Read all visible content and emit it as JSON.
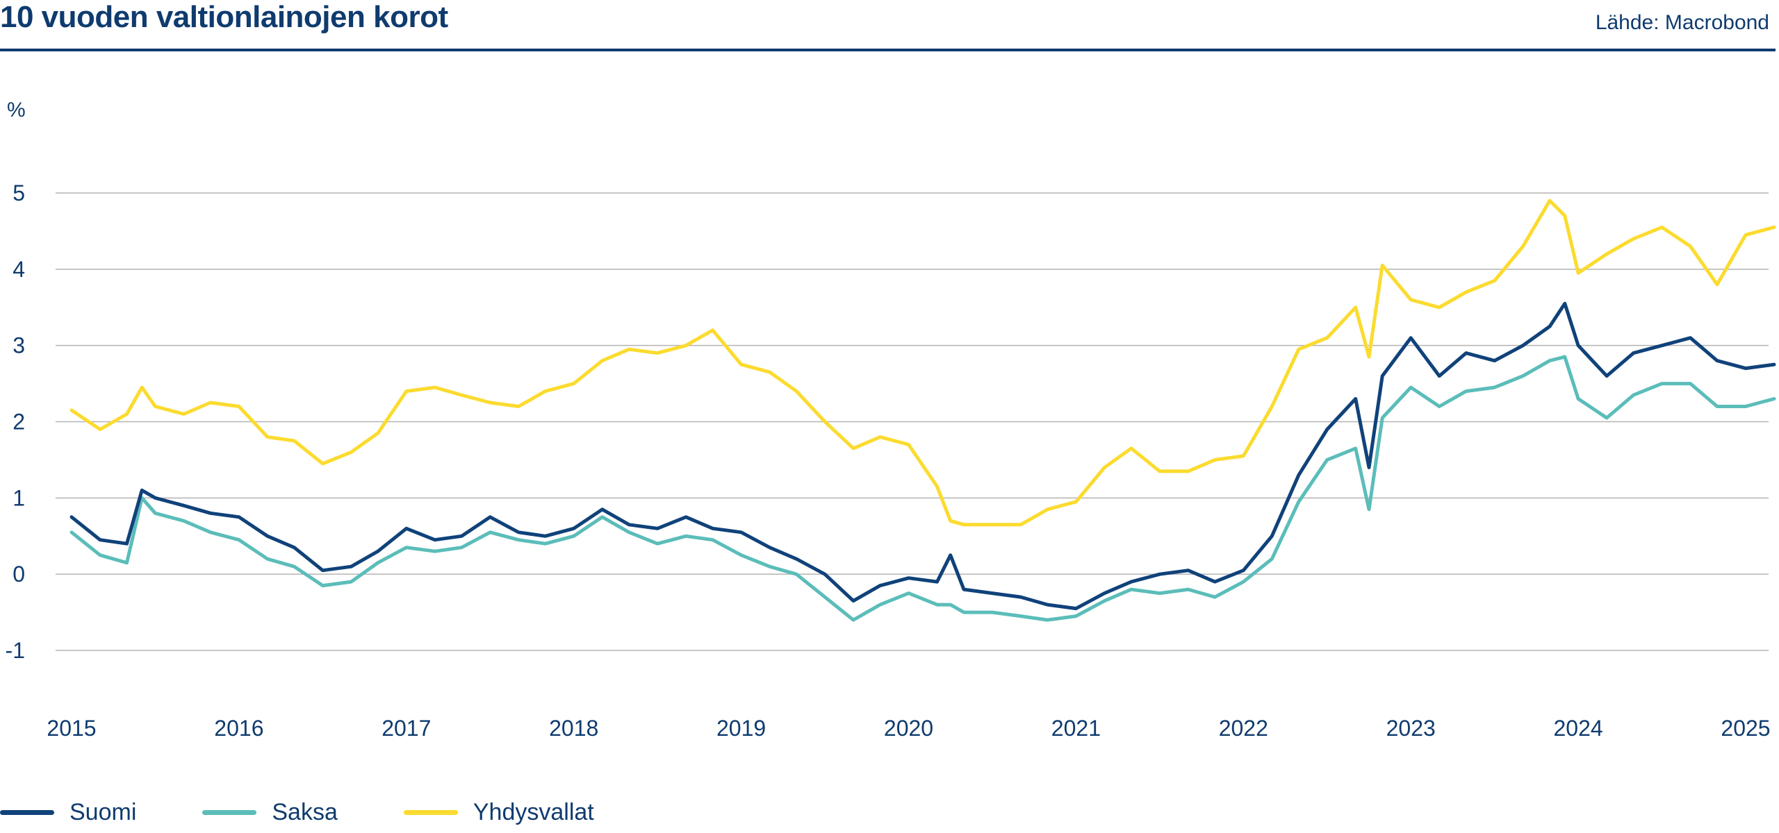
{
  "header": {
    "title": "10 vuoden valtionlainojen korot",
    "source": "Lähde: Macrobond"
  },
  "colors": {
    "suomi": "#10427a",
    "saksa": "#5bbdb9",
    "yhdysvallat": "#fbdb2f",
    "text": "#0f3b6e",
    "grid": "#b3b3b3"
  },
  "chart_data": {
    "type": "line",
    "title": "10 vuoden valtionlainojen korot",
    "ylabel": "%",
    "xlabel": "",
    "xlim": [
      2015.0,
      2025.17
    ],
    "ylim": [
      -1.5,
      5.5
    ],
    "xticks": [
      "2015",
      "2016",
      "2017",
      "2018",
      "2019",
      "2020",
      "2021",
      "2022",
      "2023",
      "2024",
      "2025"
    ],
    "yticks": [
      "5",
      "4",
      "3",
      "2",
      "1",
      "0",
      "-1"
    ],
    "grid": true,
    "legend": "bottom-left",
    "x": [
      2015.0,
      2015.17,
      2015.33,
      2015.42,
      2015.5,
      2015.67,
      2015.83,
      2016.0,
      2016.17,
      2016.33,
      2016.5,
      2016.67,
      2016.83,
      2017.0,
      2017.17,
      2017.33,
      2017.5,
      2017.67,
      2017.83,
      2018.0,
      2018.17,
      2018.33,
      2018.5,
      2018.67,
      2018.83,
      2019.0,
      2019.17,
      2019.33,
      2019.5,
      2019.67,
      2019.83,
      2020.0,
      2020.17,
      2020.25,
      2020.33,
      2020.5,
      2020.67,
      2020.83,
      2021.0,
      2021.17,
      2021.33,
      2021.5,
      2021.67,
      2021.83,
      2022.0,
      2022.17,
      2022.33,
      2022.5,
      2022.67,
      2022.75,
      2022.83,
      2023.0,
      2023.17,
      2023.33,
      2023.5,
      2023.67,
      2023.83,
      2023.92,
      2024.0,
      2024.17,
      2024.33,
      2024.5,
      2024.67,
      2024.83,
      2025.0,
      2025.17
    ],
    "series": [
      {
        "name": "Suomi",
        "values": [
          0.75,
          0.45,
          0.4,
          1.1,
          1.0,
          0.9,
          0.8,
          0.75,
          0.5,
          0.35,
          0.05,
          0.1,
          0.3,
          0.6,
          0.45,
          0.5,
          0.75,
          0.55,
          0.5,
          0.6,
          0.85,
          0.65,
          0.6,
          0.75,
          0.6,
          0.55,
          0.35,
          0.2,
          0.0,
          -0.35,
          -0.15,
          -0.05,
          -0.1,
          0.25,
          -0.2,
          -0.25,
          -0.3,
          -0.4,
          -0.45,
          -0.25,
          -0.1,
          0.0,
          0.05,
          -0.1,
          0.05,
          0.5,
          1.3,
          1.9,
          2.3,
          1.4,
          2.6,
          3.1,
          2.6,
          2.9,
          2.8,
          3.0,
          3.25,
          3.55,
          3.0,
          2.6,
          2.9,
          3.0,
          3.1,
          2.8,
          2.7,
          2.75
        ]
      },
      {
        "name": "Saksa",
        "values": [
          0.55,
          0.25,
          0.15,
          1.0,
          0.8,
          0.7,
          0.55,
          0.45,
          0.2,
          0.1,
          -0.15,
          -0.1,
          0.15,
          0.35,
          0.3,
          0.35,
          0.55,
          0.45,
          0.4,
          0.5,
          0.75,
          0.55,
          0.4,
          0.5,
          0.45,
          0.25,
          0.1,
          0.0,
          -0.3,
          -0.6,
          -0.4,
          -0.25,
          -0.4,
          -0.4,
          -0.5,
          -0.5,
          -0.55,
          -0.6,
          -0.55,
          -0.35,
          -0.2,
          -0.25,
          -0.2,
          -0.3,
          -0.1,
          0.2,
          0.95,
          1.5,
          1.65,
          0.85,
          2.05,
          2.45,
          2.2,
          2.4,
          2.45,
          2.6,
          2.8,
          2.85,
          2.3,
          2.05,
          2.35,
          2.5,
          2.5,
          2.2,
          2.2,
          2.3
        ]
      },
      {
        "name": "Yhdysvallat",
        "values": [
          2.15,
          1.9,
          2.1,
          2.45,
          2.2,
          2.1,
          2.25,
          2.2,
          1.8,
          1.75,
          1.45,
          1.6,
          1.85,
          2.4,
          2.45,
          2.35,
          2.25,
          2.2,
          2.4,
          2.5,
          2.8,
          2.95,
          2.9,
          3.0,
          3.2,
          2.75,
          2.65,
          2.4,
          2.0,
          1.65,
          1.8,
          1.7,
          1.15,
          0.7,
          0.65,
          0.65,
          0.65,
          0.85,
          0.95,
          1.4,
          1.65,
          1.35,
          1.35,
          1.5,
          1.55,
          2.2,
          2.95,
          3.1,
          3.5,
          2.85,
          4.05,
          3.6,
          3.5,
          3.7,
          3.85,
          4.3,
          4.9,
          4.7,
          3.95,
          4.2,
          4.4,
          4.55,
          4.3,
          3.8,
          4.45,
          4.55
        ]
      }
    ]
  },
  "legend": {
    "items": [
      "Suomi",
      "Saksa",
      "Yhdysvallat"
    ]
  }
}
